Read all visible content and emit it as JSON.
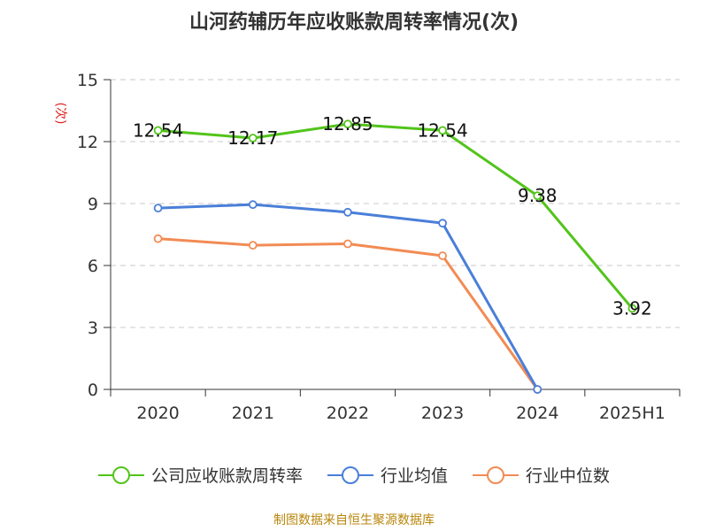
{
  "chart_data": {
    "type": "line",
    "title": "山河药辅历年应收账款周转率情况(次)",
    "ylabel": "(次)",
    "xlabel": "",
    "categories": [
      "2020",
      "2021",
      "2022",
      "2023",
      "2024",
      "2025H1"
    ],
    "ylim": [
      0,
      15
    ],
    "yticks": [
      0,
      3,
      6,
      9,
      12,
      15
    ],
    "grid": true,
    "legend_position": "bottom",
    "series": [
      {
        "name": "公司应收账款周转率",
        "color": "#52c41a",
        "values": [
          12.54,
          12.17,
          12.85,
          12.54,
          9.38,
          3.92
        ],
        "labels": [
          "12.54",
          "12.17",
          "12.85",
          "12.54",
          "9.38",
          "3.92"
        ]
      },
      {
        "name": "行业均值",
        "color": "#4a7fd9",
        "values": [
          8.78,
          8.95,
          8.58,
          8.05,
          0,
          null
        ],
        "labels": []
      },
      {
        "name": "行业中位数",
        "color": "#f28b54",
        "values": [
          7.3,
          6.98,
          7.05,
          6.47,
          0,
          null
        ],
        "labels": []
      }
    ],
    "source": "制图数据来自恒生聚源数据库"
  }
}
